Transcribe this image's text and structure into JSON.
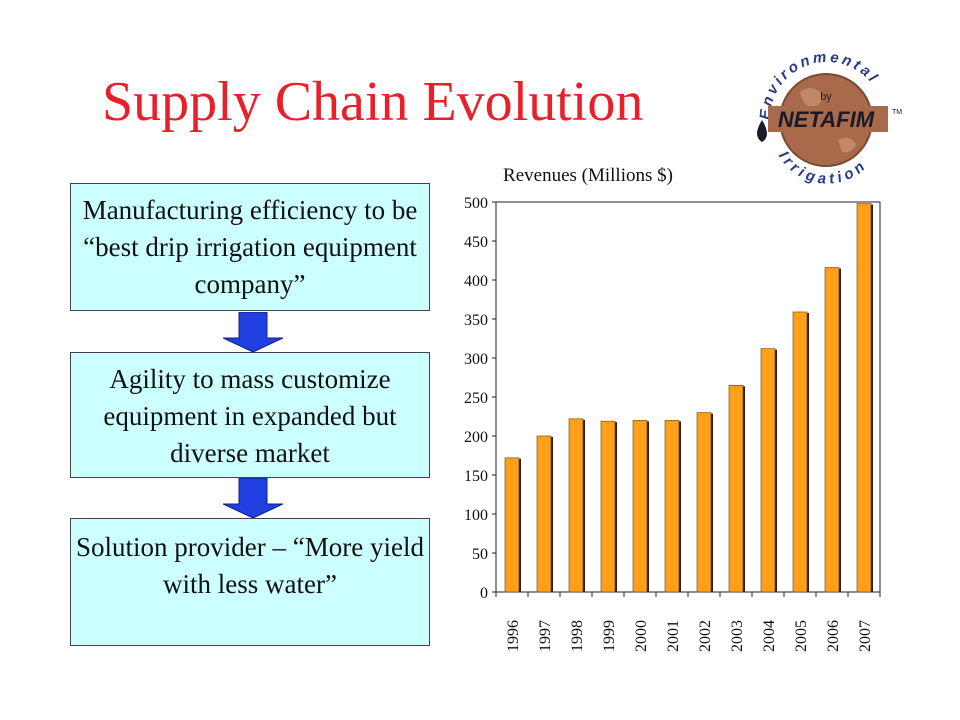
{
  "slide": {
    "title": "Supply Chain Evolution",
    "boxes": [
      {
        "text": "Manufacturing efficiency to be “best drip irrigation equipment company”"
      },
      {
        "text": "Agility to mass customize equipment in expanded but diverse market"
      },
      {
        "text": "Solution provider – “More yield with less water”"
      }
    ],
    "logo": {
      "top_text": "Environmental",
      "bottom_text": "Irrigation",
      "by": "by",
      "brand": "NETAFIM",
      "tm": "TM"
    }
  },
  "colors": {
    "title": "#e8202a",
    "box_fill": "#ccffff",
    "arrow": "#1f3fe0",
    "bar": "#ff9f1c"
  },
  "chart_data": {
    "type": "bar",
    "title": "Revenues (Millions $)",
    "categories": [
      "1996",
      "1997",
      "1998",
      "1999",
      "2000",
      "2001",
      "2002",
      "2003",
      "2004",
      "2005",
      "2006",
      "2007"
    ],
    "values": [
      172,
      200,
      222,
      219,
      220,
      220,
      230,
      265,
      312,
      359,
      416,
      498
    ],
    "ylim": [
      0,
      500
    ],
    "yticks": [
      0,
      50,
      100,
      150,
      200,
      250,
      300,
      350,
      400,
      450,
      500
    ],
    "grid": false
  }
}
